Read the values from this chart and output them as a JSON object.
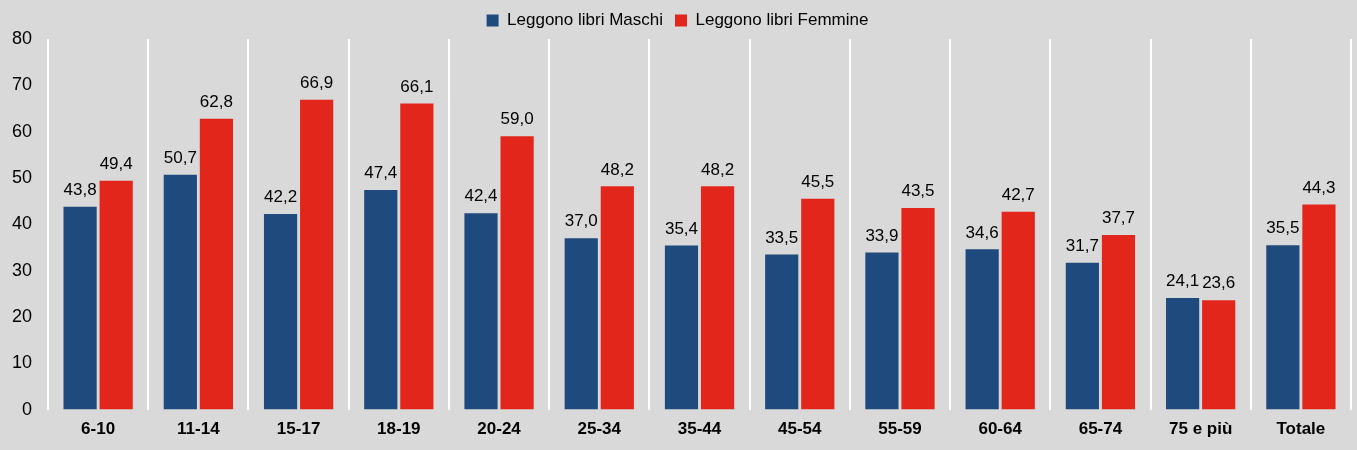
{
  "chart_data": {
    "type": "bar",
    "categories": [
      "6-10",
      "11-14",
      "15-17",
      "18-19",
      "20-24",
      "25-34",
      "35-44",
      "45-54",
      "55-59",
      "60-64",
      "65-74",
      "75 e più",
      "Totale"
    ],
    "series": [
      {
        "name": "Leggono libri Maschi",
        "color": "#1f4a7e",
        "values": [
          43.8,
          50.7,
          42.2,
          47.4,
          42.4,
          37.0,
          35.4,
          33.5,
          33.9,
          34.6,
          31.7,
          24.1,
          35.5
        ],
        "value_labels": [
          "43,8",
          "50,7",
          "42,2",
          "47,4",
          "42,4",
          "37,0",
          "35,4",
          "33,5",
          "33,9",
          "34,6",
          "31,7",
          "24,1",
          "35,5"
        ]
      },
      {
        "name": "Leggono libri Femmine",
        "color": "#e3261b",
        "values": [
          49.4,
          62.8,
          66.9,
          66.1,
          59.0,
          48.2,
          48.2,
          45.5,
          43.5,
          42.7,
          37.7,
          23.6,
          44.3
        ],
        "value_labels": [
          "49,4",
          "62,8",
          "66,9",
          "66,1",
          "59,0",
          "48,2",
          "48,2",
          "45,5",
          "43,5",
          "42,7",
          "37,7",
          "23,6",
          "44,3"
        ]
      }
    ],
    "ylim": [
      0,
      80
    ],
    "yticks": [
      0,
      10,
      20,
      30,
      40,
      50,
      60,
      70,
      80
    ],
    "grid": "x",
    "legend": "top"
  }
}
